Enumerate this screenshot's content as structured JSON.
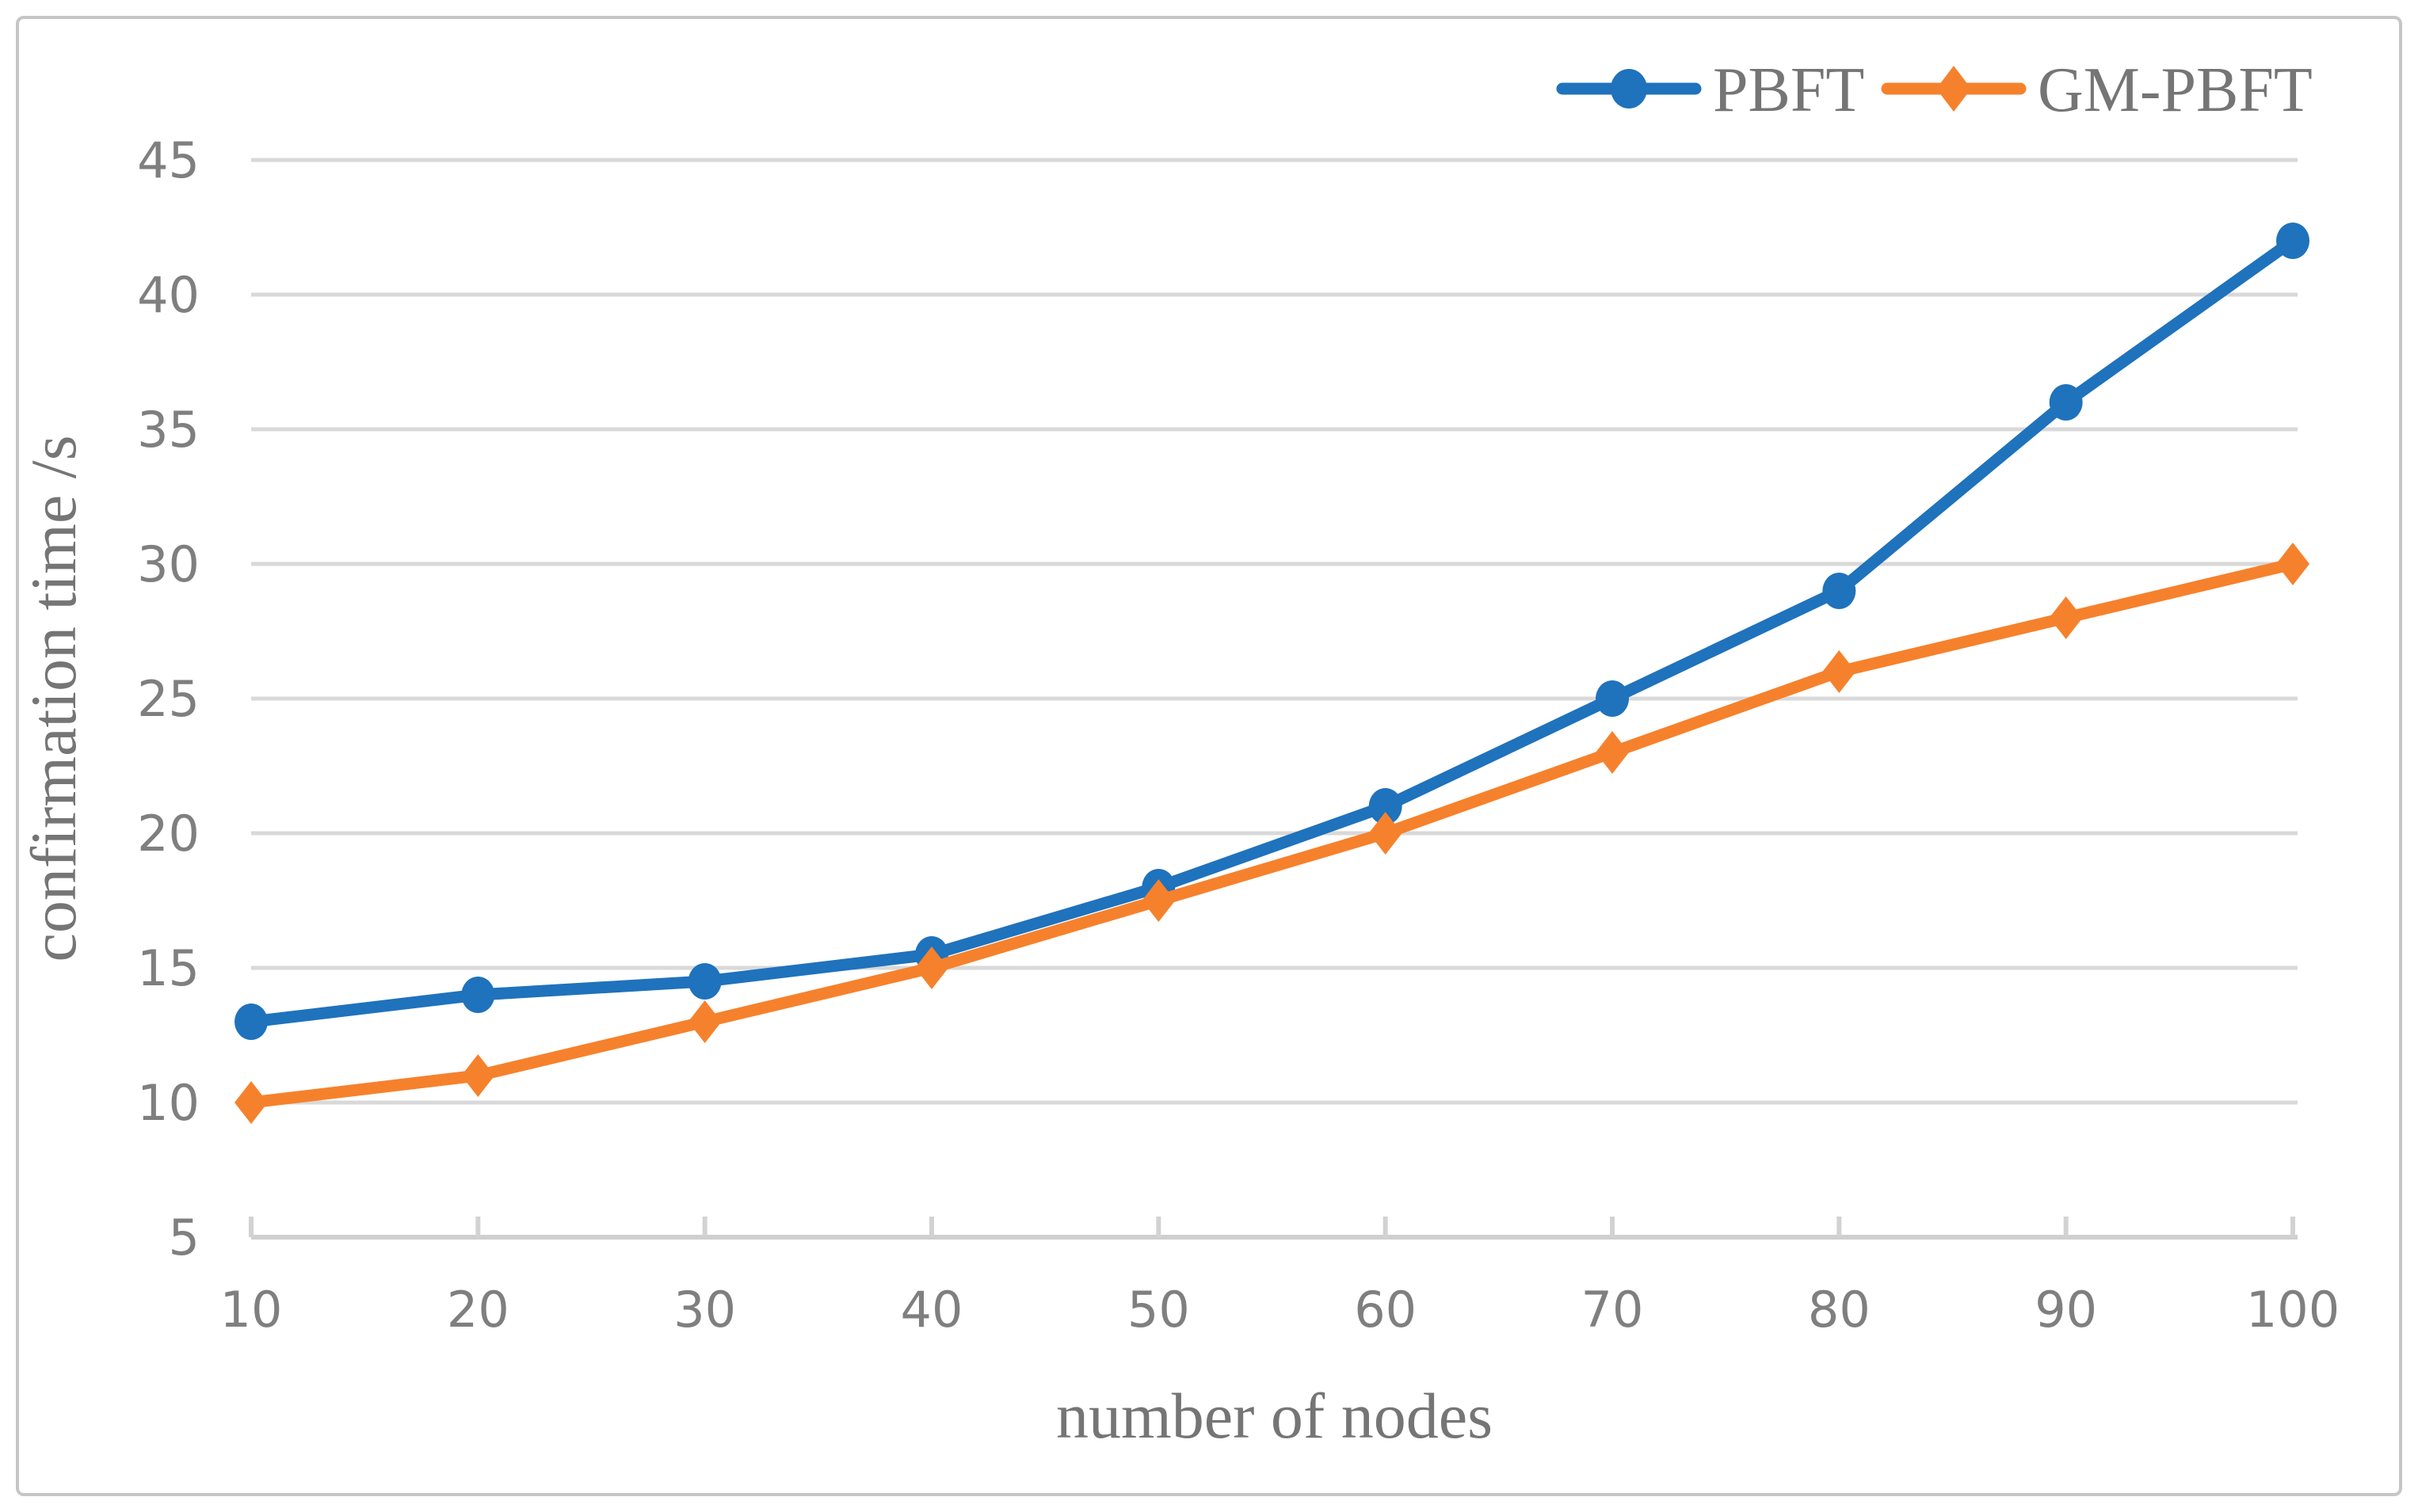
{
  "chart_data": {
    "type": "line",
    "categories": [
      10,
      20,
      30,
      40,
      50,
      60,
      70,
      80,
      90,
      100
    ],
    "series": [
      {
        "name": "PBFT",
        "marker": "circle",
        "color": "#1F72BC",
        "values": [
          13,
          14,
          14.5,
          15.5,
          18,
          21,
          25,
          29,
          36,
          42
        ]
      },
      {
        "name": "GM-PBFT",
        "marker": "diamond",
        "color": "#F6812C",
        "values": [
          10,
          11,
          13,
          15,
          17.5,
          20,
          23,
          26,
          28,
          30
        ]
      }
    ],
    "title": "",
    "xlabel": "number of nodes",
    "ylabel": "confirmation time /s",
    "ylim": [
      5,
      45
    ],
    "ytick_step": 5,
    "yticks": [
      5,
      10,
      15,
      20,
      25,
      30,
      35,
      40,
      45
    ],
    "grid": "horizontal",
    "legend_position": "top-right"
  },
  "style": {
    "background": "#FFFFFF",
    "frame_color": "#C6C6C6",
    "gridline_color": "#D9D9D9",
    "axisline_color": "#CFCFCF",
    "tick_mark_color": "#D2D2D2",
    "tick_label_color": "#7F7F7F",
    "axis_title_color": "#757575",
    "legend_text_color": "#757575"
  }
}
